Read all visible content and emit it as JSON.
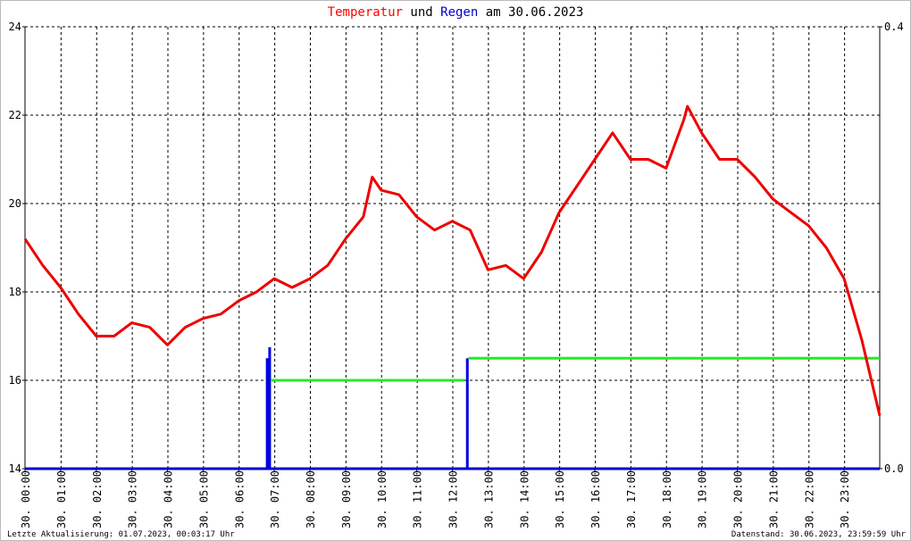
{
  "chart_data": {
    "type": "line",
    "title_parts": [
      {
        "text": "Temperatur",
        "color": "#ff0000"
      },
      {
        "text": "und",
        "color": "#000000"
      },
      {
        "text": "Regen",
        "color": "#0000cc"
      },
      {
        "text": "am 30.06.2023",
        "color": "#000000"
      }
    ],
    "footer_left": "Letzte Aktualisierung: 01.07.2023, 00:03:17 Uhr",
    "footer_right": "Datenstand: 30.06.2023, 23:59:59 Uhr",
    "xlim": [
      0,
      24
    ],
    "xticks": [
      {
        "value": 0,
        "label": "30. 00:00"
      },
      {
        "value": 1,
        "label": "30. 01:00"
      },
      {
        "value": 2,
        "label": "30. 02:00"
      },
      {
        "value": 3,
        "label": "30. 03:00"
      },
      {
        "value": 4,
        "label": "30. 04:00"
      },
      {
        "value": 5,
        "label": "30. 05:00"
      },
      {
        "value": 6,
        "label": "30. 06:00"
      },
      {
        "value": 7,
        "label": "30. 07:00"
      },
      {
        "value": 8,
        "label": "30. 08:00"
      },
      {
        "value": 9,
        "label": "30. 09:00"
      },
      {
        "value": 10,
        "label": "30. 10:00"
      },
      {
        "value": 11,
        "label": "30. 11:00"
      },
      {
        "value": 12,
        "label": "30. 12:00"
      },
      {
        "value": 13,
        "label": "30. 13:00"
      },
      {
        "value": 14,
        "label": "30. 14:00"
      },
      {
        "value": 15,
        "label": "30. 15:00"
      },
      {
        "value": 16,
        "label": "30. 16:00"
      },
      {
        "value": 17,
        "label": "30. 17:00"
      },
      {
        "value": 18,
        "label": "30. 18:00"
      },
      {
        "value": 19,
        "label": "30. 19:00"
      },
      {
        "value": 20,
        "label": "30. 20:00"
      },
      {
        "value": 21,
        "label": "30. 21:00"
      },
      {
        "value": 22,
        "label": "30. 22:00"
      },
      {
        "value": 23,
        "label": "30. 23:00"
      }
    ],
    "ylim": [
      14,
      24
    ],
    "yticks": [
      14,
      16,
      18,
      20,
      22,
      24
    ],
    "y2lim": [
      0,
      0.4
    ],
    "y2ticks": [
      {
        "value": 0,
        "label": "0.0"
      },
      0.4
    ],
    "grid": true,
    "series": [
      {
        "type": "line",
        "color": "#ee0000",
        "x": [
          0,
          0.5,
          1,
          1.5,
          2,
          2.5,
          3,
          3.5,
          4,
          4.5,
          5,
          5.5,
          6,
          6.5,
          7,
          7.5,
          8,
          8.5,
          9,
          9.5,
          9.75,
          10,
          10.5,
          11,
          11.5,
          12,
          12.5,
          13,
          13.5,
          14,
          14.5,
          15,
          15.5,
          16,
          16.5,
          17,
          17.5,
          18,
          18.5,
          18.6,
          19,
          19.5,
          20,
          20.5,
          21,
          21.5,
          22,
          22.5,
          23,
          23.5,
          24
        ],
        "values": [
          19.2,
          18.6,
          18.1,
          17.5,
          17.0,
          17.0,
          17.3,
          17.2,
          16.8,
          17.2,
          17.4,
          17.5,
          17.8,
          18.0,
          18.3,
          18.1,
          18.3,
          18.6,
          19.2,
          19.7,
          20.6,
          20.3,
          20.2,
          19.7,
          19.4,
          19.6,
          19.4,
          18.5,
          18.6,
          18.3,
          18.9,
          19.8,
          20.4,
          21.0,
          21.6,
          21.0,
          21.0,
          20.8,
          21.9,
          22.2,
          21.6,
          21.0,
          21.0,
          20.6,
          20.1,
          19.8,
          19.5,
          19.0,
          18.3,
          16.9,
          15.2
        ]
      },
      {
        "type": "bar",
        "axis": "y2",
        "color": "#0000dd",
        "x": [
          6.8,
          6.87,
          12.42
        ],
        "values": [
          0.1,
          0.11,
          0.1
        ]
      },
      {
        "type": "line",
        "axis": "y2",
        "color": "#22ee22",
        "x": [
          6.9,
          12.35,
          12.4,
          12.45,
          24
        ],
        "values": [
          0.08,
          0.08,
          null,
          0.1,
          0.1
        ]
      }
    ]
  }
}
